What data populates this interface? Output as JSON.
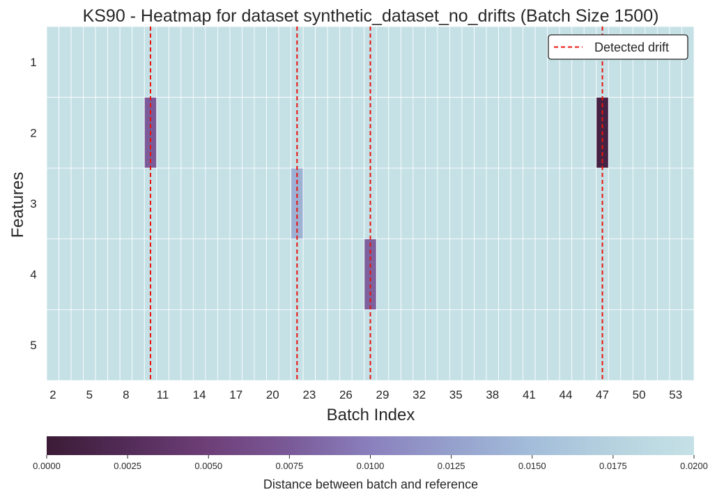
{
  "chart_data": {
    "type": "heatmap",
    "title": "KS90 - Heatmap for dataset synthetic_dataset_no_drifts (Batch Size 1500)",
    "xlabel": "Batch Index",
    "ylabel": "Features",
    "batch_range": [
      2,
      54
    ],
    "x_tick_labels": [
      "2",
      "5",
      "8",
      "11",
      "14",
      "17",
      "20",
      "23",
      "26",
      "29",
      "32",
      "35",
      "38",
      "41",
      "44",
      "47",
      "50",
      "53"
    ],
    "features": [
      "1",
      "2",
      "3",
      "4",
      "5"
    ],
    "default_value": 0.02,
    "cells": [
      {
        "feature": "2",
        "batch": 10,
        "value": 0.0075
      },
      {
        "feature": "2",
        "batch": 47,
        "value": 0.001
      },
      {
        "feature": "3",
        "batch": 22,
        "value": 0.014
      },
      {
        "feature": "4",
        "batch": 28,
        "value": 0.008
      }
    ],
    "drift_lines": [
      10,
      22,
      28,
      47
    ],
    "legend": {
      "label": "Detected drift",
      "color": "#e8130c",
      "position": "upper-right"
    },
    "colorbar": {
      "label": "Distance between batch and reference",
      "range": [
        0.0,
        0.02
      ],
      "ticks": [
        "0.0000",
        "0.0025",
        "0.0050",
        "0.0075",
        "0.0100",
        "0.0125",
        "0.0150",
        "0.0175",
        "0.0200"
      ],
      "colors": [
        "#3b1b36",
        "#532c58",
        "#6e3f78",
        "#7a5a98",
        "#8a80bd",
        "#95a0cc",
        "#a3bdda",
        "#b6d2df",
        "#c5e1e6"
      ]
    }
  }
}
